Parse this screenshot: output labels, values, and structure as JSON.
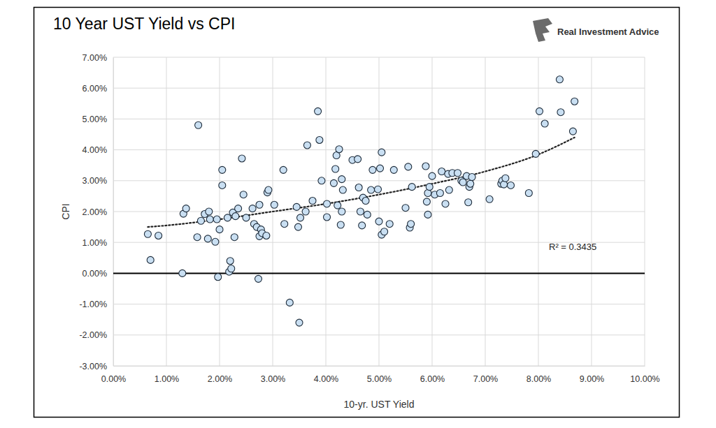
{
  "chart_data": {
    "type": "scatter",
    "title": "10 Year UST Yield vs CPI",
    "logo": "Real Investment Advice",
    "x_label": "10-yr. UST Yield",
    "y_label": "CPI",
    "marker": "circle",
    "color": "#c9dff2",
    "grid": true,
    "x": [
      0.65,
      0.7,
      0.85,
      1.3,
      1.32,
      1.37,
      1.58,
      1.6,
      1.65,
      1.72,
      1.78,
      1.8,
      1.82,
      1.92,
      1.95,
      1.97,
      2.0,
      2.05,
      2.05,
      2.15,
      2.18,
      2.2,
      2.22,
      2.25,
      2.28,
      2.3,
      2.35,
      2.42,
      2.45,
      2.5,
      2.62,
      2.65,
      2.7,
      2.73,
      2.75,
      2.75,
      2.78,
      2.8,
      2.88,
      2.9,
      2.92,
      3.03,
      3.2,
      3.22,
      3.32,
      3.45,
      3.48,
      3.5,
      3.52,
      3.62,
      3.65,
      3.75,
      3.85,
      3.88,
      3.92,
      4.02,
      4.02,
      4.15,
      4.18,
      4.2,
      4.22,
      4.25,
      4.28,
      4.3,
      4.3,
      4.32,
      4.5,
      4.6,
      4.62,
      4.65,
      4.68,
      4.7,
      4.75,
      4.78,
      4.85,
      4.88,
      4.98,
      5.0,
      5.02,
      5.05,
      5.05,
      5.1,
      5.2,
      5.28,
      5.5,
      5.55,
      5.58,
      5.6,
      5.62,
      5.88,
      5.9,
      5.92,
      5.92,
      5.95,
      6.0,
      6.05,
      6.15,
      6.18,
      6.25,
      6.3,
      6.32,
      6.38,
      6.48,
      6.55,
      6.58,
      6.65,
      6.68,
      6.7,
      6.72,
      6.75,
      7.08,
      7.3,
      7.32,
      7.35,
      7.38,
      7.48,
      7.82,
      7.95,
      8.02,
      8.12,
      8.4,
      8.42,
      8.65,
      8.68
    ],
    "values": [
      1.27,
      0.43,
      1.22,
      0.0,
      1.93,
      2.1,
      1.17,
      4.8,
      1.7,
      1.92,
      1.12,
      2.0,
      1.75,
      1.02,
      1.75,
      -0.12,
      1.42,
      2.85,
      3.35,
      1.8,
      0.05,
      0.4,
      0.15,
      1.97,
      1.17,
      1.85,
      2.1,
      3.72,
      2.55,
      1.8,
      2.1,
      1.6,
      1.5,
      -0.18,
      1.2,
      2.22,
      1.42,
      1.3,
      1.22,
      2.62,
      2.7,
      2.22,
      3.35,
      1.6,
      -0.95,
      2.15,
      1.5,
      -1.6,
      1.8,
      2.0,
      4.15,
      2.35,
      5.25,
      4.32,
      3.0,
      1.82,
      2.25,
      2.92,
      3.38,
      3.82,
      2.2,
      4.02,
      1.57,
      2.0,
      3.05,
      2.7,
      3.67,
      3.7,
      2.78,
      2.0,
      1.55,
      2.45,
      2.35,
      1.9,
      2.7,
      3.35,
      2.72,
      1.68,
      3.4,
      3.92,
      1.25,
      1.35,
      1.6,
      3.35,
      2.12,
      3.45,
      1.48,
      1.6,
      2.8,
      3.47,
      2.32,
      1.9,
      2.6,
      2.8,
      3.15,
      2.55,
      2.6,
      3.3,
      2.25,
      3.22,
      2.7,
      3.25,
      3.25,
      3.0,
      2.95,
      3.15,
      2.3,
      2.8,
      2.9,
      3.12,
      2.4,
      2.9,
      3.0,
      2.88,
      3.08,
      2.85,
      2.6,
      3.87,
      5.25,
      4.85,
      6.28,
      5.22,
      4.6,
      5.57
    ],
    "trendline": {
      "x": [
        0.65,
        1.0,
        2.0,
        3.0,
        4.0,
        5.0,
        6.0,
        7.0,
        8.0,
        8.68
      ],
      "values": [
        1.5,
        1.55,
        1.75,
        2.0,
        2.25,
        2.55,
        2.9,
        3.3,
        3.85,
        4.4
      ],
      "line_style": "dotted",
      "color": "#222222"
    },
    "annotation": "R² = 0.3435",
    "baseline": 0,
    "xlim": [
      0,
      10
    ],
    "ylim": [
      -3,
      7
    ],
    "xticks": [
      {
        "value": 0,
        "label": "0.00%"
      },
      {
        "value": 1,
        "label": "1.00%"
      },
      {
        "value": 2,
        "label": "2.00%"
      },
      {
        "value": 3,
        "label": "3.00%"
      },
      {
        "value": 4,
        "label": "4.00%"
      },
      {
        "value": 5,
        "label": "5.00%"
      },
      {
        "value": 6,
        "label": "6.00%"
      },
      {
        "value": 7,
        "label": "7.00%"
      },
      {
        "value": 8,
        "label": "8.00%"
      },
      {
        "value": 9,
        "label": "9.00%"
      },
      {
        "value": 10,
        "label": "10.00%"
      }
    ],
    "yticks": [
      {
        "value": -3,
        "label": "-3.00%"
      },
      {
        "value": -2,
        "label": "-2.00%"
      },
      {
        "value": -1,
        "label": "-1.00%"
      },
      {
        "value": 0,
        "label": "0.00%"
      },
      {
        "value": 1,
        "label": "1.00%"
      },
      {
        "value": 2,
        "label": "2.00%"
      },
      {
        "value": 3,
        "label": "3.00%"
      },
      {
        "value": 4,
        "label": "4.00%"
      },
      {
        "value": 5,
        "label": "5.00%"
      },
      {
        "value": 6,
        "label": "6.00%"
      },
      {
        "value": 7,
        "label": "7.00%"
      }
    ]
  }
}
